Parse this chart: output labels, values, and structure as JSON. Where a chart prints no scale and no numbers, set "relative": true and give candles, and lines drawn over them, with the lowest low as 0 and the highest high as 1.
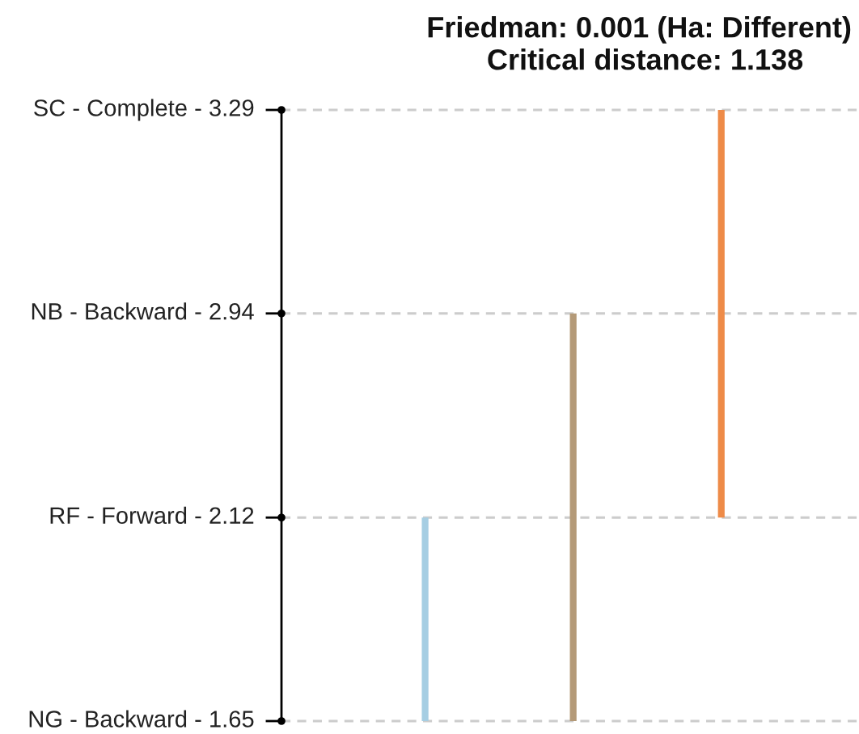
{
  "chart_data": {
    "type": "candlestick",
    "relative": true,
    "title": "Friedman: 0.001 (Ha: Different)",
    "subtitle": "Critical distance: 1.138",
    "categories": [
      null,
      null,
      null
    ],
    "ohlc": [
      [
        0,
        0.333,
        0,
        0.333
      ],
      [
        0,
        0.667,
        0,
        0.667
      ],
      [
        0.333,
        1,
        0.333,
        1
      ]
    ],
    "colors": [
      "#a6cee3",
      "#b49a78",
      "#ee8b48"
    ],
    "ref_lines": [
      {
        "axis": "y",
        "value": 1,
        "label": "SC - Complete - 3.29",
        "color": "#cccccc",
        "line_style": "dashed"
      },
      {
        "axis": "y",
        "value": 0.667,
        "label": "NB - Backward - 2.94",
        "color": "#cccccc",
        "line_style": "dashed"
      },
      {
        "axis": "y",
        "value": 0.333,
        "label": "RF - Forward - 2.12",
        "color": "#cccccc",
        "line_style": "dashed"
      },
      {
        "axis": "y",
        "value": 0,
        "label": "NG - Backward - 1.65",
        "color": "#cccccc",
        "line_style": "dashed"
      }
    ],
    "tick_labels": false
  }
}
